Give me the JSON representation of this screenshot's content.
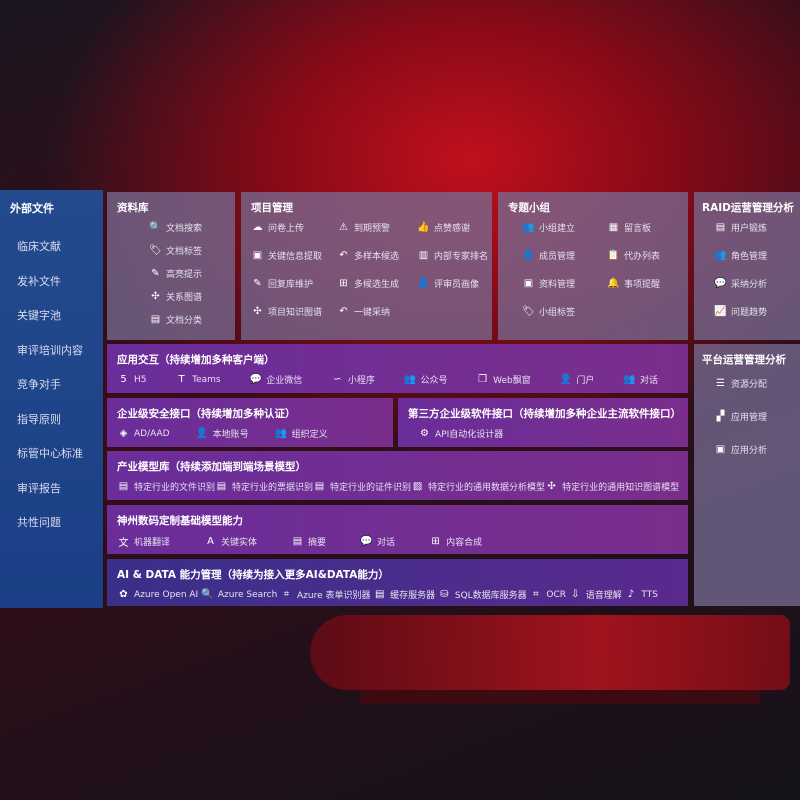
{
  "external_files": {
    "title": "外部文件",
    "items": [
      "临床文献",
      "发补文件",
      "关键字池",
      "审评培训内容",
      "竞争对手",
      "指导原则",
      "标管中心标准",
      "审评报告",
      "共性问题"
    ]
  },
  "library": {
    "title": "资料库",
    "items": [
      {
        "label": "文档搜索",
        "icon": "document-search-icon",
        "g": "🔍"
      },
      {
        "label": "文档标签",
        "icon": "tag-icon",
        "g": "🏷"
      },
      {
        "label": "高亮提示",
        "icon": "pen-icon",
        "g": "✎"
      },
      {
        "label": "关系图谱",
        "icon": "graph-icon",
        "g": "✣"
      },
      {
        "label": "文档分类",
        "icon": "document-stack-icon",
        "g": "▤"
      }
    ]
  },
  "project": {
    "title": "项目管理",
    "items": [
      {
        "label": "问卷上传",
        "icon": "cloud-upload-icon",
        "g": "☁"
      },
      {
        "label": "到期预警",
        "icon": "alarm-icon",
        "g": "⚠"
      },
      {
        "label": "点赞感谢",
        "icon": "thumbs-up-icon",
        "g": "👍"
      },
      {
        "label": "关键信息提取",
        "icon": "window-icon",
        "g": "▣"
      },
      {
        "label": "多样本候选",
        "icon": "reply-icon",
        "g": "↶"
      },
      {
        "label": "内部专家排名",
        "icon": "ranking-icon",
        "g": "▥"
      },
      {
        "label": "回复库维护",
        "icon": "edit-icon",
        "g": "✎"
      },
      {
        "label": "多候选生成",
        "icon": "puzzle-icon",
        "g": "⊞"
      },
      {
        "label": "评审员画像",
        "icon": "user-icon",
        "g": "👤"
      },
      {
        "label": "项目知识图谱",
        "icon": "graph-icon",
        "g": "✣"
      },
      {
        "label": "一键采纳",
        "icon": "reply-icon",
        "g": "↶"
      }
    ]
  },
  "group": {
    "title": "专题小组",
    "items": [
      {
        "label": "小组建立",
        "icon": "group-icon",
        "g": "👥"
      },
      {
        "label": "留言板",
        "icon": "bbs-icon",
        "g": "▦"
      },
      {
        "label": "成员管理",
        "icon": "user-add-icon",
        "g": "👤"
      },
      {
        "label": "代办列表",
        "icon": "clipboard-icon",
        "g": "📋"
      },
      {
        "label": "资料管理",
        "icon": "folder-icon",
        "g": "▣"
      },
      {
        "label": "事项提醒",
        "icon": "bell-icon",
        "g": "🔔"
      },
      {
        "label": "小组标签",
        "icon": "tag-icon",
        "g": "🏷"
      }
    ]
  },
  "raid": {
    "title": "RAID运营管理分析",
    "items": [
      {
        "label": "用户锻炼",
        "icon": "id-card-icon",
        "g": "▤"
      },
      {
        "label": "角色管理",
        "icon": "users-icon",
        "g": "👥"
      },
      {
        "label": "采纳分析",
        "icon": "qa-icon",
        "g": "💬"
      },
      {
        "label": "问题趋势",
        "icon": "trend-icon",
        "g": "📈"
      }
    ]
  },
  "platform": {
    "title": "平台运营管理分析",
    "items": [
      {
        "label": "资源分配",
        "icon": "list-icon",
        "g": "☰"
      },
      {
        "label": "应用管理",
        "icon": "apps-icon",
        "g": "▞"
      },
      {
        "label": "应用分析",
        "icon": "analysis-icon",
        "g": "▣"
      }
    ]
  },
  "app_interaction": {
    "title": "应用交互（持续增加多种客户端）",
    "items": [
      {
        "label": "H5",
        "icon": "html5-icon",
        "g": "5"
      },
      {
        "label": "Teams",
        "icon": "teams-icon",
        "g": "T"
      },
      {
        "label": "企业微信",
        "icon": "wechat-icon",
        "g": "💬"
      },
      {
        "label": "小程序",
        "icon": "miniprogram-icon",
        "g": "∽"
      },
      {
        "label": "公众号",
        "icon": "users-icon",
        "g": "👥"
      },
      {
        "label": "Web飘窗",
        "icon": "window-icon",
        "g": "❐"
      },
      {
        "label": "门户",
        "icon": "portal-icon",
        "g": "👤"
      },
      {
        "label": "对话",
        "icon": "chat-users-icon",
        "g": "👥"
      }
    ]
  },
  "security": {
    "title": "企业级安全接口（持续增加多种认证）",
    "items": [
      {
        "label": "AD/AAD",
        "icon": "diamond-icon",
        "g": "◈"
      },
      {
        "label": "本地账号",
        "icon": "user-lock-icon",
        "g": "👤"
      },
      {
        "label": "组织定义",
        "icon": "org-icon",
        "g": "👥"
      }
    ]
  },
  "third_party": {
    "title": "第三方企业级软件接口（持续增加多种企业主流软件接口）",
    "items": [
      {
        "label": "API自动化设计器",
        "icon": "gear-icon",
        "g": "⚙"
      }
    ]
  },
  "industry": {
    "title": "产业模型库（持续添加端到端场景模型）",
    "items": [
      {
        "label": "特定行业的文件识别",
        "icon": "file-icon",
        "g": "▤"
      },
      {
        "label": "特定行业的票据识别",
        "icon": "receipt-icon",
        "g": "▤"
      },
      {
        "label": "特定行业的证件识别",
        "icon": "id-card-icon",
        "g": "▤"
      },
      {
        "label": "特定行业的通用数据分析模型",
        "icon": "chart-icon",
        "g": "▨"
      },
      {
        "label": "特定行业的通用知识图谱模型",
        "icon": "graph-icon",
        "g": "✣"
      }
    ]
  },
  "base_model": {
    "title": "神州数码定制基础模型能力",
    "items": [
      {
        "label": "机器翻译",
        "icon": "translate-icon",
        "g": "文"
      },
      {
        "label": "关键实体",
        "icon": "entity-icon",
        "g": "A"
      },
      {
        "label": "摘要",
        "icon": "summary-icon",
        "g": "▤"
      },
      {
        "label": "对话",
        "icon": "chat-icon",
        "g": "💬"
      },
      {
        "label": "内容合成",
        "icon": "puzzle-icon",
        "g": "⊞"
      }
    ]
  },
  "ai_data": {
    "title": "AI & DATA 能力管理（持续为接入更多AI&DATA能力）",
    "items": [
      {
        "label": "Azure Open AI",
        "icon": "openai-icon",
        "g": "✿"
      },
      {
        "label": "Azure Search",
        "icon": "search-doc-icon",
        "g": "🔍"
      },
      {
        "label": "Azure 表单识别器",
        "icon": "form-scan-icon",
        "g": "⌗"
      },
      {
        "label": "缓存服务器",
        "icon": "cache-icon",
        "g": "▤"
      },
      {
        "label": "SQL数据库服务器",
        "icon": "database-icon",
        "g": "⛁"
      },
      {
        "label": "OCR",
        "icon": "ocr-icon",
        "g": "⌗"
      },
      {
        "label": "语音理解",
        "icon": "speech-icon",
        "g": "⇩"
      },
      {
        "label": "TTS",
        "icon": "tts-icon",
        "g": "♪"
      }
    ]
  }
}
